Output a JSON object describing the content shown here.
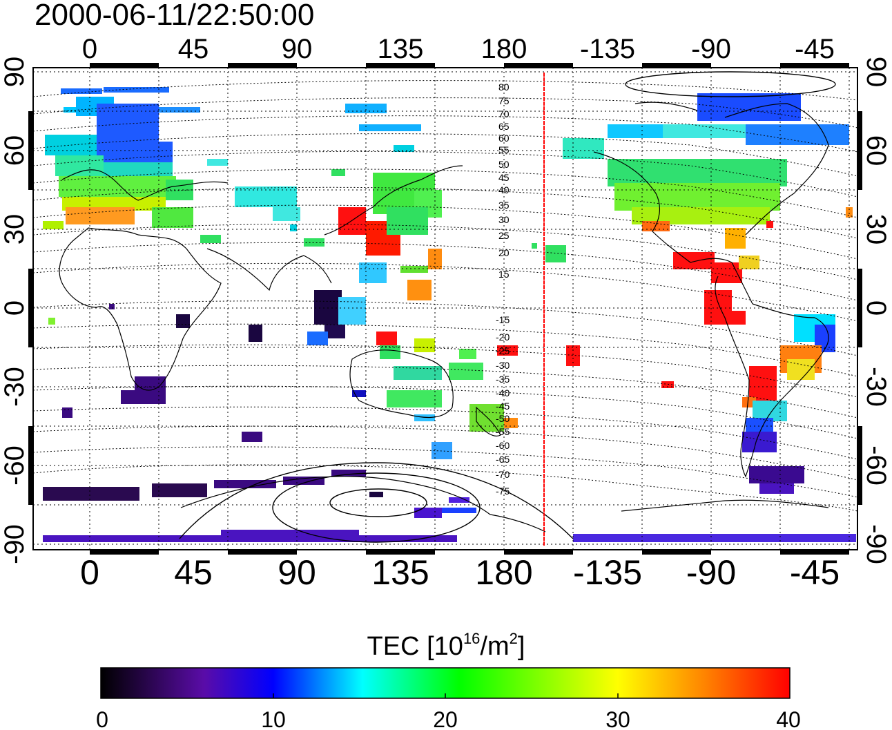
{
  "timestamp": "2000-06-11/22:50:00",
  "x_ticks_top": [
    "0",
    "45",
    "90",
    "135",
    "180",
    "-135",
    "-90",
    "-45"
  ],
  "x_ticks_bottom": [
    "0",
    "45",
    "90",
    "135",
    "180",
    "-135",
    "-90",
    "-45"
  ],
  "y_ticks": [
    "90",
    "60",
    "30",
    "0",
    "-30",
    "-60",
    "-90"
  ],
  "contour_labels_north": [
    "80",
    "75",
    "70",
    "65",
    "60",
    "55",
    "50",
    "45",
    "40",
    "35",
    "30",
    "25",
    "20",
    "15"
  ],
  "contour_labels_south": [
    "-15",
    "-20",
    "-25",
    "-30",
    "-35",
    "-40",
    "-45",
    "-50",
    "-55",
    "-60",
    "-65",
    "-70",
    "-75"
  ],
  "colorbar": {
    "title_main": "TEC  [10",
    "title_sup": "16",
    "title_mid": "/m",
    "title_sup2": "2",
    "title_end": "]",
    "min": 0,
    "max": 40,
    "tick_labels": [
      "0",
      "10",
      "20",
      "30",
      "40"
    ],
    "colors": [
      "#000000",
      "#5a0ca8",
      "#0000ff",
      "#00ffff",
      "#00ff00",
      "#ffff00",
      "#ff8000",
      "#ff0000"
    ]
  },
  "colors": {
    "frame": "#000000",
    "grid": "#000000",
    "meridian_marker": "#ff0000"
  }
}
